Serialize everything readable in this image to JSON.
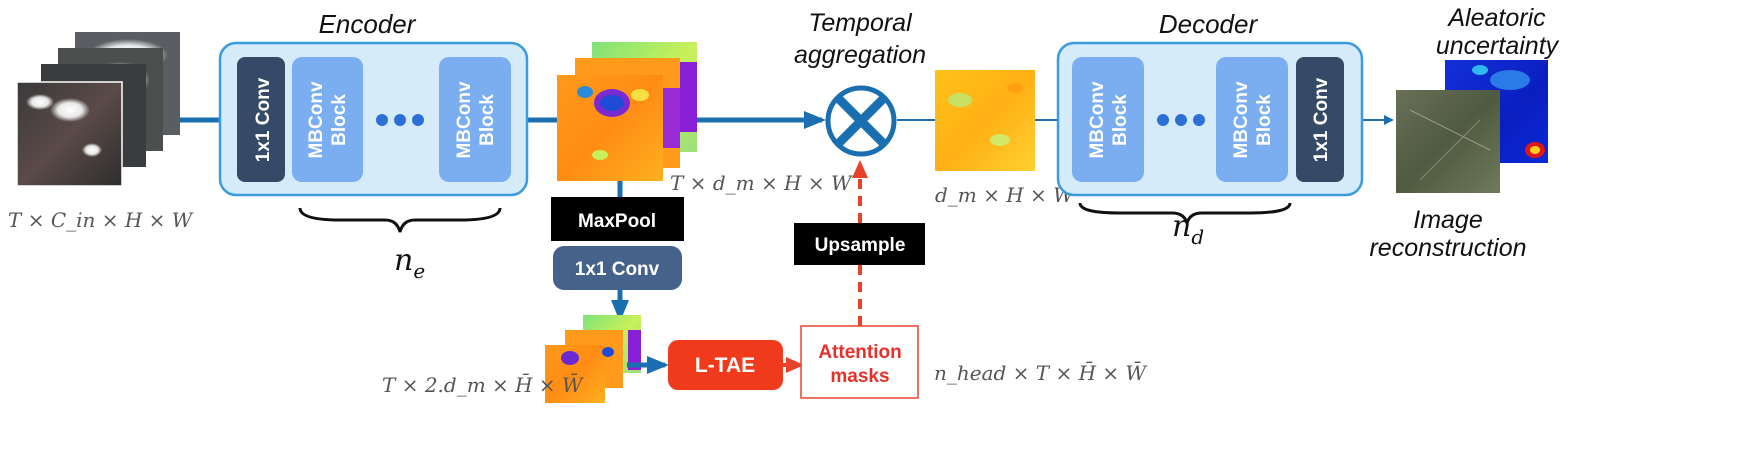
{
  "titles": {
    "encoder": "Encoder",
    "decoder": "Decoder",
    "temporal_aggregation_line1": "Temporal",
    "temporal_aggregation_line2": "aggregation",
    "aleatoric_line1": "Aleatoric",
    "aleatoric_line2": "uncertainty",
    "image_recon_line1": "Image",
    "image_recon_line2": "reconstruction"
  },
  "encoder": {
    "conv_label": "1x1 Conv",
    "block1_line1": "MBConv",
    "block1_line2": "Block",
    "block2_line1": "MBConv",
    "block2_line2": "Block",
    "count_label": "n",
    "count_sub": "e"
  },
  "decoder": {
    "block1_line1": "MBConv",
    "block1_line2": "Block",
    "block2_line1": "MBConv",
    "block2_line2": "Block",
    "conv_label": "1x1 Conv",
    "count_label": "n",
    "count_sub": "d"
  },
  "branch": {
    "maxpool": "MaxPool",
    "conv": "1x1 Conv",
    "ltae": "L-TAE",
    "attention_line1": "Attention",
    "attention_line2": "masks",
    "upsample": "Upsample"
  },
  "shapes": {
    "input": "T × C_in × H × W",
    "features": "T × d_m × H × W",
    "aggregated": "d_m × H × W",
    "pooled": "T × 2.d_m × H̄ × W̄",
    "masks": "n_head × T × H̄ × W̄"
  },
  "colors": {
    "flow_blue": "#1a6fb0",
    "module_fill": "#d6ebfa",
    "module_border": "#3a9be0",
    "block_fill": "#7aaef0",
    "conv_fill": "#354a66",
    "pool_conv_fill": "#45628a",
    "ltae_red": "#f03a1c",
    "mask_red": "#e8432a",
    "black_box": "#000000"
  },
  "icons": [
    "ellipsis-dots-icon",
    "aggregation-cross-icon",
    "brace-icon"
  ]
}
